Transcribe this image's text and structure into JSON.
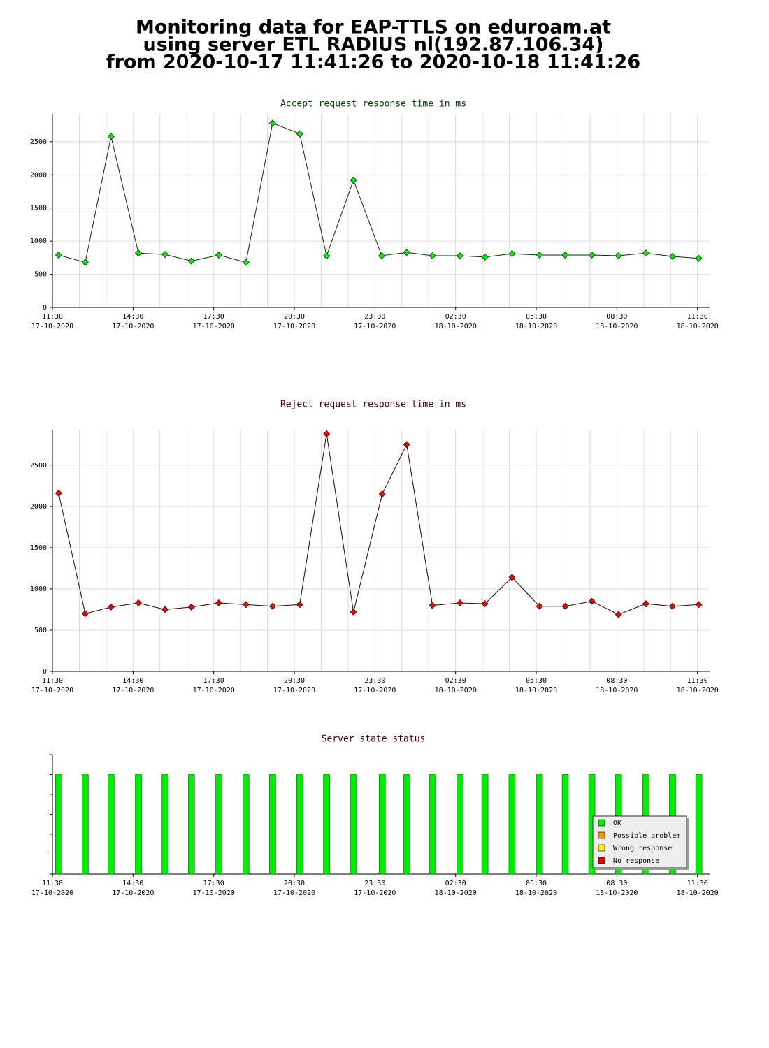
{
  "page_title": [
    "Monitoring data for EAP-TTLS on eduroam.at",
    "using server ETL RADIUS nl(192.87.106.34)",
    "from 2020-10-17 11:41:26 to 2020-10-18 11:41:26"
  ],
  "chart_data": [
    {
      "type": "line",
      "title": "Accept request response time in ms",
      "title_color": "#004400",
      "line_color": "#003300",
      "marker_color": "#00ee00",
      "x": [
        0.23,
        1.22,
        2.18,
        3.2,
        4.19,
        5.17,
        6.19,
        7.2,
        8.19,
        9.2,
        10.2,
        11.2,
        12.25,
        13.18,
        14.14,
        15.16,
        16.09,
        17.1,
        18.12,
        19.08,
        20.07,
        21.06,
        22.08,
        23.07,
        24.05
      ],
      "values": [
        790,
        680,
        2580,
        820,
        800,
        700,
        790,
        680,
        2780,
        2620,
        780,
        1920,
        780,
        830,
        780,
        780,
        760,
        810,
        790,
        790,
        790,
        780,
        820,
        770,
        740
      ],
      "xlim": [
        0,
        24.45
      ],
      "ylim": [
        0,
        2920
      ],
      "yticks": [
        0,
        500,
        1000,
        1500,
        2000,
        2500
      ],
      "xticks": [
        {
          "value": 0,
          "label": "11:30",
          "date": "17-10-2020"
        },
        {
          "value": 3,
          "label": "14:30",
          "date": "17-10-2020"
        },
        {
          "value": 6,
          "label": "17:30",
          "date": "17-10-2020"
        },
        {
          "value": 9,
          "label": "20:30",
          "date": "17-10-2020"
        },
        {
          "value": 12,
          "label": "23:30",
          "date": "17-10-2020"
        },
        {
          "value": 15,
          "label": "02:30",
          "date": "18-10-2020"
        },
        {
          "value": 18,
          "label": "05:30",
          "date": "18-10-2020"
        },
        {
          "value": 21,
          "label": "08:30",
          "date": "18-10-2020"
        },
        {
          "value": 24,
          "label": "11:30",
          "date": "18-10-2020"
        }
      ],
      "xgrid": [
        1,
        2,
        3,
        4,
        5,
        6,
        7,
        8,
        9,
        10,
        11,
        12,
        13,
        14,
        15,
        16,
        17,
        18,
        19,
        20,
        21,
        22,
        23,
        24
      ],
      "grid": true
    },
    {
      "type": "line",
      "title": "Reject request response time in ms",
      "title_color": "#440000",
      "line_color": "#330000",
      "marker_color": "#ee0000",
      "x": [
        0.23,
        1.22,
        2.18,
        3.2,
        4.19,
        5.17,
        6.19,
        7.2,
        8.19,
        9.2,
        10.2,
        11.2,
        12.27,
        13.18,
        14.14,
        15.16,
        16.09,
        17.1,
        18.12,
        19.08,
        20.07,
        21.06,
        22.08,
        23.07,
        24.05
      ],
      "values": [
        2160,
        700,
        780,
        830,
        750,
        780,
        830,
        810,
        790,
        810,
        2880,
        720,
        2150,
        2750,
        800,
        830,
        820,
        1140,
        790,
        790,
        850,
        690,
        820,
        790,
        810
      ],
      "xlim": [
        0,
        24.45
      ],
      "ylim": [
        0,
        2930
      ],
      "yticks": [
        0,
        500,
        1000,
        1500,
        2000,
        2500
      ],
      "xticks": [
        {
          "value": 0,
          "label": "11:30",
          "date": "17-10-2020"
        },
        {
          "value": 3,
          "label": "14:30",
          "date": "17-10-2020"
        },
        {
          "value": 6,
          "label": "17:30",
          "date": "17-10-2020"
        },
        {
          "value": 9,
          "label": "20:30",
          "date": "17-10-2020"
        },
        {
          "value": 12,
          "label": "23:30",
          "date": "17-10-2020"
        },
        {
          "value": 15,
          "label": "02:30",
          "date": "18-10-2020"
        },
        {
          "value": 18,
          "label": "05:30",
          "date": "18-10-2020"
        },
        {
          "value": 21,
          "label": "08:30",
          "date": "18-10-2020"
        },
        {
          "value": 24,
          "label": "11:30",
          "date": "18-10-2020"
        }
      ],
      "xgrid": [
        1,
        2,
        3,
        4,
        5,
        6,
        7,
        8,
        9,
        10,
        11,
        12,
        13,
        14,
        15,
        16,
        17,
        18,
        19,
        20,
        21,
        22,
        23,
        24
      ],
      "grid": true
    },
    {
      "type": "bar",
      "title": "Server state status",
      "title_color": "#440000",
      "color": "#00ee00",
      "x": [
        0.23,
        1.22,
        2.18,
        3.2,
        4.19,
        5.17,
        6.19,
        7.2,
        8.19,
        9.2,
        10.2,
        11.2,
        12.27,
        13.18,
        14.14,
        15.16,
        16.09,
        17.1,
        18.12,
        19.08,
        20.07,
        21.06,
        22.08,
        23.07,
        24.05
      ],
      "values": [
        1,
        1,
        1,
        1,
        1,
        1,
        1,
        1,
        1,
        1,
        1,
        1,
        1,
        1,
        1,
        1,
        1,
        1,
        1,
        1,
        1,
        1,
        1,
        1,
        1
      ],
      "xlim": [
        0,
        24.45
      ],
      "ylim": [
        0,
        1.2
      ],
      "yticks": [
        0,
        0.2,
        0.4,
        0.6,
        0.8,
        1,
        1.2
      ],
      "xticks": [
        {
          "value": 0,
          "label": "11:30",
          "date": "17-10-2020"
        },
        {
          "value": 3,
          "label": "14:30",
          "date": "17-10-2020"
        },
        {
          "value": 6,
          "label": "17:30",
          "date": "17-10-2020"
        },
        {
          "value": 9,
          "label": "20:30",
          "date": "17-10-2020"
        },
        {
          "value": 12,
          "label": "23:30",
          "date": "17-10-2020"
        },
        {
          "value": 15,
          "label": "02:30",
          "date": "18-10-2020"
        },
        {
          "value": 18,
          "label": "05:30",
          "date": "18-10-2020"
        },
        {
          "value": 21,
          "label": "08:30",
          "date": "18-10-2020"
        },
        {
          "value": 24,
          "label": "11:30",
          "date": "18-10-2020"
        }
      ],
      "legend": [
        {
          "name": "OK",
          "color": "#00ee00"
        },
        {
          "name": "Possible problem",
          "color": "#ff9900"
        },
        {
          "name": "Wrong response",
          "color": "#ffee00"
        },
        {
          "name": "No response",
          "color": "#ee0000"
        }
      ],
      "legend_position": "lower right"
    }
  ]
}
